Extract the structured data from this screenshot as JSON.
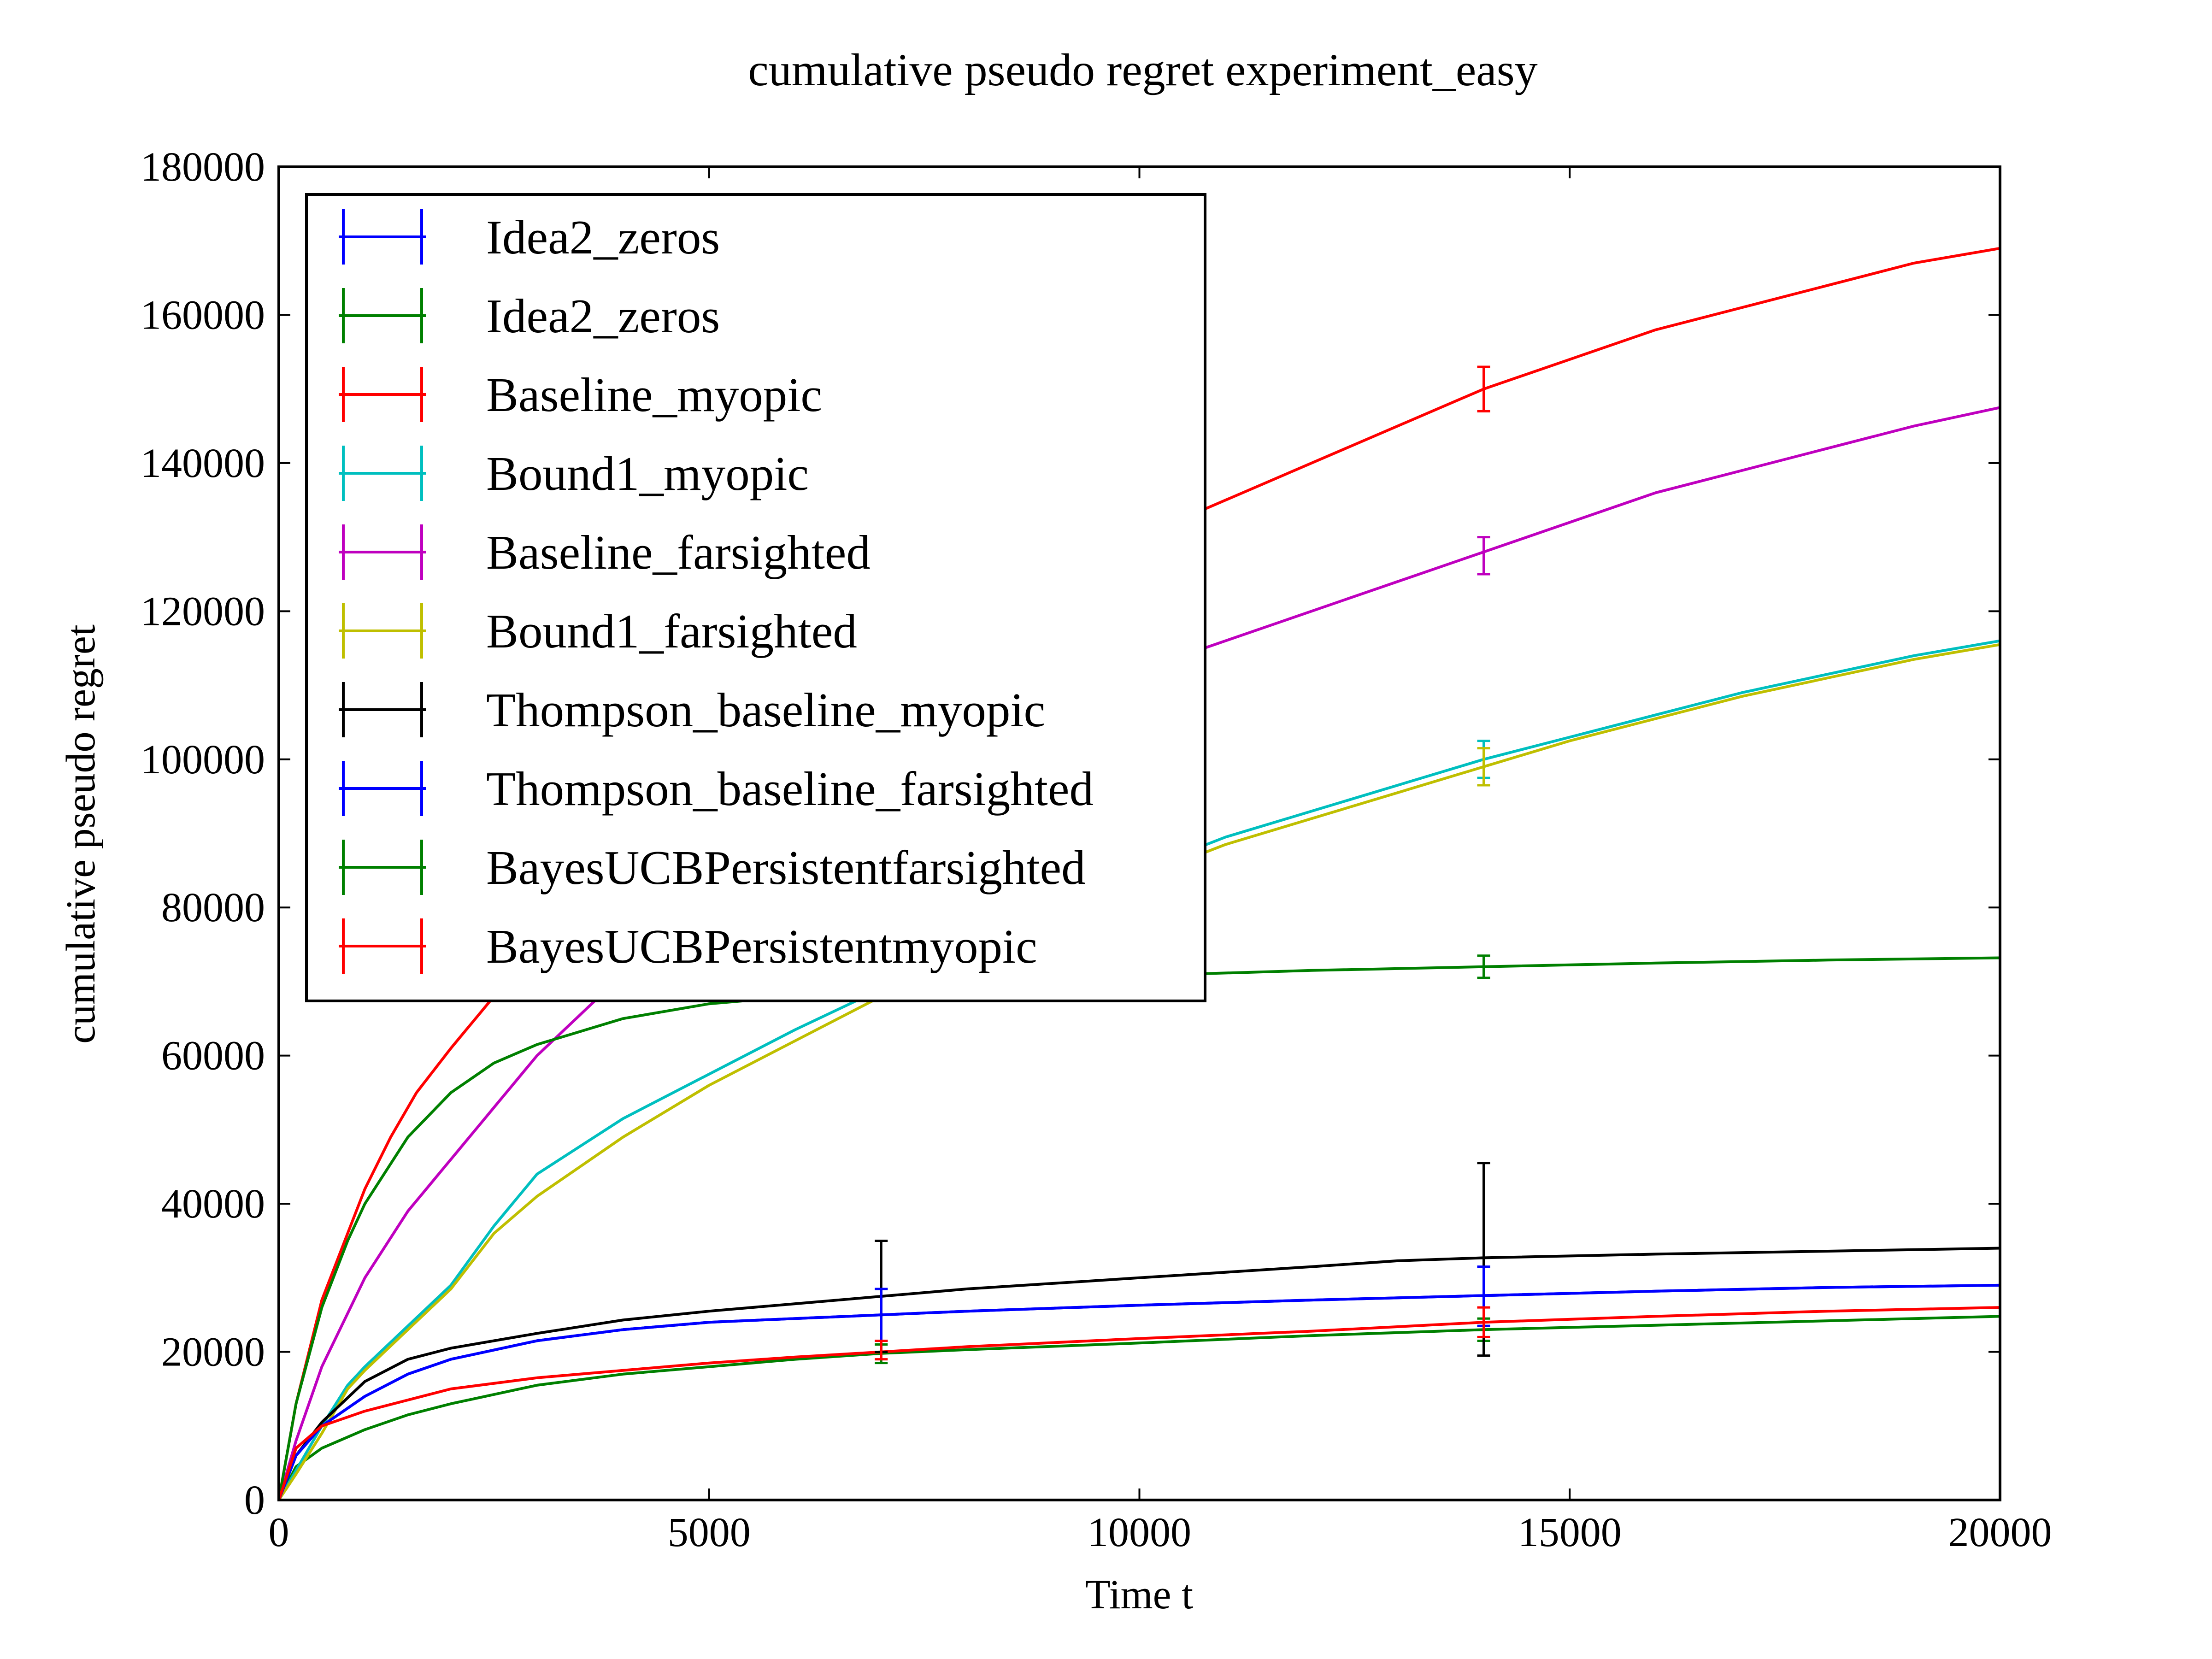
{
  "chart_data": {
    "type": "line",
    "title": "cumulative pseudo regret experiment_easy",
    "xlabel": "Time t",
    "ylabel": "cumulative pseudo regret",
    "xlim": [
      0,
      20000
    ],
    "ylim": [
      0,
      180000
    ],
    "xticks": [
      "0",
      "5000",
      "10000",
      "15000",
      "20000"
    ],
    "yticks": [
      "0",
      "20000",
      "40000",
      "60000",
      "80000",
      "100000",
      "120000",
      "140000",
      "160000",
      "180000"
    ],
    "grid": false,
    "legend_position": "top-left",
    "series": [
      {
        "name": "Idea2_zeros",
        "color": "#0000ff",
        "x": [
          0,
          200,
          500,
          1000,
          1500,
          2000,
          3000,
          4000,
          5000,
          6000,
          7000,
          8000,
          10000,
          12000,
          14000,
          16000,
          18000,
          20000
        ],
        "y": [
          0,
          6000,
          10000,
          14000,
          17000,
          19000,
          21500,
          23000,
          24000,
          24500,
          25000,
          25500,
          26300,
          27000,
          27600,
          28200,
          28700,
          29000
        ],
        "errorbars": [
          {
            "x": 7000,
            "low": 21500,
            "high": 28500
          },
          {
            "x": 14000,
            "low": 23500,
            "high": 31500
          }
        ]
      },
      {
        "name": "Idea2_zeros",
        "color": "#008000",
        "x": [
          0,
          200,
          500,
          1000,
          1500,
          2000,
          3000,
          4000,
          5000,
          6000,
          7000,
          8000,
          10000,
          12000,
          14000,
          16000,
          18000,
          20000
        ],
        "y": [
          0,
          4500,
          7000,
          9500,
          11500,
          13000,
          15500,
          17000,
          18000,
          19000,
          19800,
          20300,
          21200,
          22200,
          23000,
          23600,
          24200,
          24800
        ],
        "errorbars": [
          {
            "x": 7000,
            "low": 18500,
            "high": 21000
          },
          {
            "x": 14000,
            "low": 21500,
            "high": 24500
          }
        ]
      },
      {
        "name": "Baseline_myopic",
        "color": "#ff0000",
        "x": [
          0,
          200,
          500,
          800,
          1000,
          1300,
          1600,
          2000,
          2500,
          3000,
          4000,
          5000,
          6000,
          7000,
          8000,
          9000,
          10000,
          11000,
          12000,
          13000,
          14000,
          15000,
          16000,
          17000,
          18000,
          19000,
          20000
        ],
        "y": [
          0,
          13000,
          27000,
          36000,
          42000,
          49000,
          55000,
          61000,
          68000,
          75000,
          88000,
          98000,
          106000,
          113000,
          119000,
          125000,
          130000,
          135000,
          140000,
          145000,
          150000,
          154000,
          158000,
          161000,
          164000,
          167000,
          169000
        ],
        "errorbars": [
          {
            "x": 14000,
            "low": 147000,
            "high": 153000
          }
        ]
      },
      {
        "name": "Bound1_myopic",
        "color": "#00bfbf",
        "x": [
          0,
          200,
          500,
          800,
          1000,
          1500,
          2000,
          2500,
          3000,
          4000,
          5000,
          6000,
          7000,
          8000,
          9000,
          10000,
          11000,
          12000,
          13000,
          14000,
          15000,
          16000,
          17000,
          18000,
          19000,
          20000
        ],
        "y": [
          0,
          4000,
          10000,
          15500,
          18000,
          23500,
          29000,
          37000,
          44000,
          51500,
          57500,
          63500,
          69000,
          75000,
          80000,
          85000,
          89500,
          93000,
          96500,
          100000,
          103000,
          106000,
          109000,
          111500,
          114000,
          116000
        ],
        "errorbars": [
          {
            "x": 14000,
            "low": 97500,
            "high": 102500
          }
        ]
      },
      {
        "name": "Baseline_farsighted",
        "color": "#bf00bf",
        "x": [
          0,
          200,
          500,
          1000,
          1500,
          2000,
          2500,
          3000,
          4000,
          5000,
          6000,
          7000,
          8000,
          9000,
          10000,
          11000,
          12000,
          13000,
          14000,
          15000,
          16000,
          17000,
          18000,
          19000,
          20000
        ],
        "y": [
          0,
          8000,
          18000,
          30000,
          39000,
          46000,
          53000,
          60000,
          71000,
          80000,
          88000,
          95000,
          101000,
          107000,
          112000,
          116000,
          120000,
          124000,
          128000,
          132000,
          136000,
          139000,
          142000,
          145000,
          147500
        ],
        "errorbars": [
          {
            "x": 14000,
            "low": 125000,
            "high": 130000
          }
        ]
      },
      {
        "name": "Bound1_farsighted",
        "color": "#bfbf00",
        "x": [
          0,
          200,
          500,
          800,
          1000,
          1500,
          2000,
          2500,
          3000,
          4000,
          5000,
          6000,
          7000,
          8000,
          9000,
          10000,
          11000,
          12000,
          13000,
          14000,
          15000,
          16000,
          17000,
          18000,
          19000,
          20000
        ],
        "y": [
          0,
          3500,
          9000,
          15000,
          17500,
          23000,
          28500,
          36000,
          41000,
          49000,
          56000,
          62000,
          68000,
          73500,
          79000,
          84000,
          88500,
          92000,
          95500,
          99000,
          102500,
          105500,
          108500,
          111000,
          113500,
          115500
        ],
        "errorbars": [
          {
            "x": 14000,
            "low": 96500,
            "high": 101500
          }
        ]
      },
      {
        "name": "Thompson_baseline_myopic",
        "color": "#000000",
        "x": [
          0,
          200,
          500,
          1000,
          1500,
          2000,
          3000,
          4000,
          5000,
          6000,
          7000,
          8000,
          10000,
          12000,
          13000,
          14000,
          16000,
          18000,
          20000
        ],
        "y": [
          0,
          6000,
          10500,
          16000,
          19000,
          20500,
          22500,
          24300,
          25500,
          26500,
          27500,
          28500,
          30000,
          31500,
          32300,
          32700,
          33200,
          33600,
          34000
        ],
        "errorbars": [
          {
            "x": 7000,
            "low": 20000,
            "high": 35000
          },
          {
            "x": 14000,
            "low": 19500,
            "high": 45500
          }
        ]
      },
      {
        "name": "Thompson_baseline_farsighted",
        "color": "#0000ff",
        "x": [
          0,
          200,
          500,
          1000,
          1500,
          2000,
          3000,
          4000,
          5000,
          6000,
          7000,
          8000,
          10000,
          12000,
          14000,
          16000,
          18000,
          20000
        ],
        "y": [
          0,
          6000,
          10000,
          14000,
          17000,
          19000,
          21500,
          23000,
          24000,
          24500,
          25000,
          25500,
          26300,
          27000,
          27600,
          28200,
          28700,
          29000
        ],
        "errorbars": [
          {
            "x": 7000,
            "low": 21500,
            "high": 28500
          },
          {
            "x": 14000,
            "low": 23500,
            "high": 31500
          }
        ]
      },
      {
        "name": "BayesUCBPersistentfarsighted",
        "color": "#008000",
        "x": [
          0,
          200,
          500,
          800,
          1000,
          1500,
          2000,
          2500,
          3000,
          4000,
          5000,
          6000,
          7000,
          8000,
          9000,
          10000,
          12000,
          14000,
          16000,
          18000,
          20000
        ],
        "y": [
          0,
          13000,
          26000,
          35000,
          40000,
          49000,
          55000,
          59000,
          61500,
          65000,
          67000,
          68000,
          69000,
          69800,
          70300,
          70800,
          71500,
          72000,
          72500,
          72900,
          73200
        ],
        "errorbars": [
          {
            "x": 7000,
            "low": 68000,
            "high": 70000
          },
          {
            "x": 14000,
            "low": 70500,
            "high": 73500
          }
        ]
      },
      {
        "name": "BayesUCBPersistentmyopic",
        "color": "#ff0000",
        "x": [
          0,
          200,
          500,
          1000,
          1500,
          2000,
          3000,
          4000,
          5000,
          6000,
          7000,
          8000,
          10000,
          12000,
          14000,
          16000,
          18000,
          20000
        ],
        "y": [
          0,
          7000,
          10000,
          12000,
          13500,
          15000,
          16500,
          17500,
          18500,
          19300,
          20000,
          20700,
          21800,
          22800,
          24000,
          24800,
          25500,
          26000
        ],
        "errorbars": [
          {
            "x": 7000,
            "low": 19000,
            "high": 21500
          },
          {
            "x": 14000,
            "low": 22000,
            "high": 26000
          }
        ]
      }
    ]
  }
}
